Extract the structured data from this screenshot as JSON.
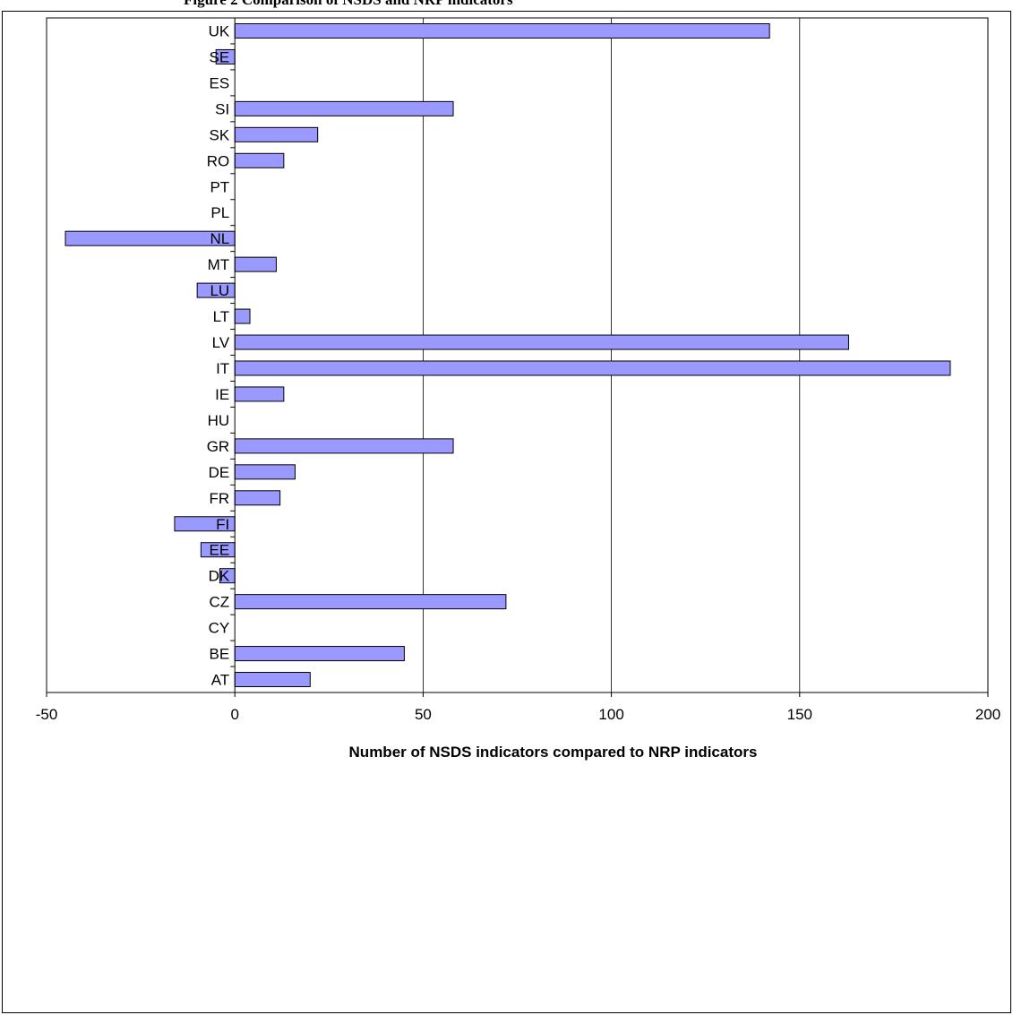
{
  "caption": "Figure 2 Comparison of NSDS and NRP indicators",
  "chart_data": {
    "type": "bar",
    "orientation": "horizontal",
    "categories": [
      "UK",
      "SE",
      "ES",
      "SI",
      "SK",
      "RO",
      "PT",
      "PL",
      "NL",
      "MT",
      "LU",
      "LT",
      "LV",
      "IT",
      "IE",
      "HU",
      "GR",
      "DE",
      "FR",
      "FI",
      "EE",
      "DK",
      "CZ",
      "CY",
      "BE",
      "AT"
    ],
    "values": [
      142,
      -5,
      0,
      58,
      22,
      13,
      0,
      0,
      -45,
      11,
      -10,
      4,
      163,
      190,
      13,
      0,
      58,
      16,
      12,
      -16,
      -9,
      -4,
      72,
      0,
      45,
      20
    ],
    "xlabel": "Number of NSDS indicators compared to NRP indicators",
    "ylabel": "",
    "xlim": [
      -50,
      200
    ],
    "xticks": [
      "-50",
      "0",
      "50",
      "100",
      "150",
      "200"
    ],
    "grid": "vertical",
    "bar_color": "#9999ff",
    "legend": "none"
  }
}
